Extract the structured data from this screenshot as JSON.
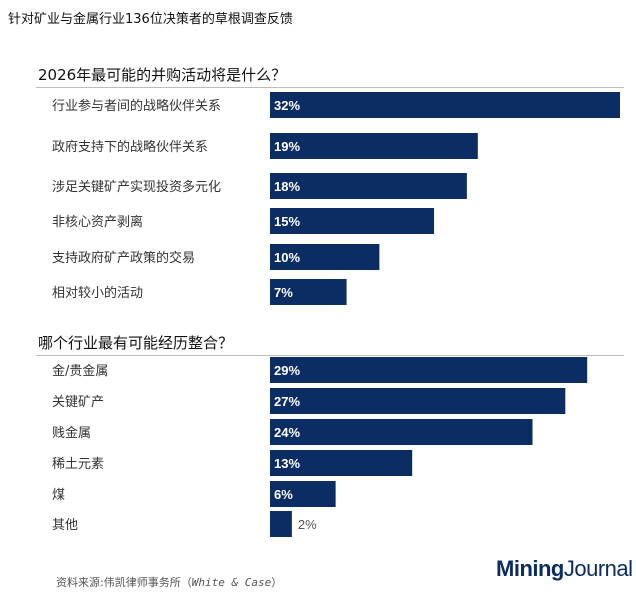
{
  "header": {
    "title": "针对矿业与金属行业136位决策者的草根调查反馈"
  },
  "chart_data": [
    {
      "type": "bar",
      "orientation": "horizontal",
      "title": "2026年最可能的并购活动将是什么？",
      "categories": [
        "行业参与者间的战略伙伴关系",
        "政府支持下的战略伙伴关系",
        "涉足关键矿产实现投资多元化",
        "非核心资产剥离",
        "支持政府矿产政策的交易",
        "相对较小的活动"
      ],
      "values": [
        32,
        19,
        18,
        15,
        10,
        7
      ],
      "value_labels": [
        "32%",
        "19%",
        "18%",
        "15%",
        "10%",
        "7%"
      ],
      "unit": "%",
      "xlim": [
        0,
        32
      ]
    },
    {
      "type": "bar",
      "orientation": "horizontal",
      "title": "哪个行业最有可能经历整合？",
      "categories": [
        "金/贵金属",
        "关键矿产",
        "贱金属",
        "稀土元素",
        "煤",
        "其他"
      ],
      "values": [
        29,
        27,
        24,
        13,
        6,
        2
      ],
      "value_labels": [
        "29%",
        "27%",
        "24%",
        "13%",
        "6%",
        "2%"
      ],
      "unit": "%",
      "xlim": [
        0,
        32
      ]
    }
  ],
  "colors": {
    "bar": "#0b2d63",
    "label_inside": "#ffffff",
    "label_outside": "#555555"
  },
  "footer": {
    "source_prefix": "资料来源:伟凯律师事务所（",
    "source_firm": "White & Case",
    "source_suffix": "）",
    "logo_first": "Mining",
    "logo_second": "Journal"
  }
}
